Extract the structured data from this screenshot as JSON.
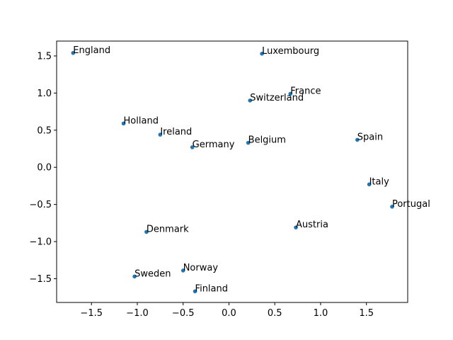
{
  "chart_data": {
    "type": "scatter",
    "title": "",
    "xlabel": "",
    "ylabel": "",
    "xlim": [
      -1.88,
      1.95
    ],
    "ylim": [
      -1.82,
      1.7
    ],
    "xticks": [
      -1.5,
      -1.0,
      -0.5,
      0.0,
      0.5,
      1.0,
      1.5
    ],
    "xtick_labels": [
      "−1.5",
      "−1.0",
      "−0.5",
      "0.0",
      "0.5",
      "1.0",
      "1.5"
    ],
    "yticks": [
      -1.5,
      -1.0,
      -0.5,
      0.0,
      0.5,
      1.0,
      1.5
    ],
    "ytick_labels": [
      "−1.5",
      "−1.0",
      "−0.5",
      "0.0",
      "0.5",
      "1.0",
      "1.5"
    ],
    "grid": false,
    "color": "#1f77b4",
    "points": [
      {
        "label": "England",
        "x": -1.7,
        "y": 1.54
      },
      {
        "label": "Luxembourg",
        "x": 0.36,
        "y": 1.53
      },
      {
        "label": "France",
        "x": 0.67,
        "y": 0.99
      },
      {
        "label": "Switzerland",
        "x": 0.23,
        "y": 0.9
      },
      {
        "label": "Holland",
        "x": -1.15,
        "y": 0.59
      },
      {
        "label": "Ireland",
        "x": -0.75,
        "y": 0.44
      },
      {
        "label": "Germany",
        "x": -0.4,
        "y": 0.27
      },
      {
        "label": "Belgium",
        "x": 0.21,
        "y": 0.33
      },
      {
        "label": "Spain",
        "x": 1.4,
        "y": 0.37
      },
      {
        "label": "Italy",
        "x": 1.53,
        "y": -0.23
      },
      {
        "label": "Portugal",
        "x": 1.78,
        "y": -0.53
      },
      {
        "label": "Austria",
        "x": 0.73,
        "y": -0.81
      },
      {
        "label": "Denmark",
        "x": -0.9,
        "y": -0.87
      },
      {
        "label": "Norway",
        "x": -0.5,
        "y": -1.39
      },
      {
        "label": "Sweden",
        "x": -1.03,
        "y": -1.47
      },
      {
        "label": "Finland",
        "x": -0.37,
        "y": -1.67
      }
    ]
  }
}
